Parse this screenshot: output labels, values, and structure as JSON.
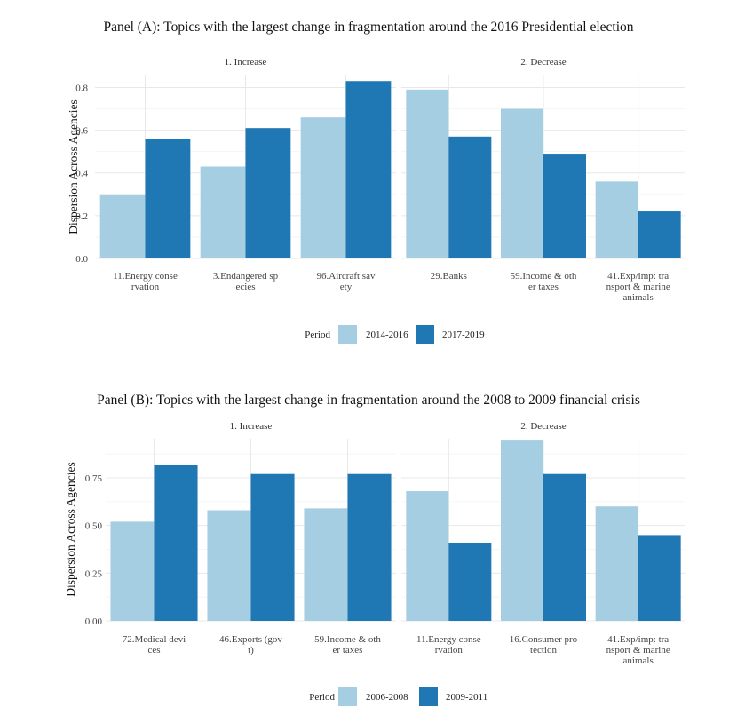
{
  "chart_data": [
    {
      "type": "bar",
      "title": "Panel (A): Topics with the largest change in fragmentation around the 2016 Presidential election",
      "ylabel": "Dispersion Across Agencies",
      "xlabel": "",
      "ylim": [
        0,
        0.86
      ],
      "yticks": [
        "0.0",
        "0.2",
        "0.4",
        "0.6",
        "0.8"
      ],
      "legend": {
        "title": "Period",
        "position": "bottom"
      },
      "series": [
        {
          "name": "2014-2016",
          "color": "#a6cee3"
        },
        {
          "name": "2017-2019",
          "color": "#1f78b4"
        }
      ],
      "facets": [
        {
          "label": "1. Increase",
          "categories": [
            [
              "11.Energy conse",
              "rvation"
            ],
            [
              "3.Endangered sp",
              "ecies"
            ],
            [
              "96.Aircraft sav",
              "ety"
            ]
          ],
          "values": [
            [
              0.3,
              0.56
            ],
            [
              0.43,
              0.61
            ],
            [
              0.66,
              0.83
            ]
          ]
        },
        {
          "label": "2. Decrease",
          "categories": [
            [
              "29.Banks"
            ],
            [
              "59.Income & oth",
              "er taxes"
            ],
            [
              "41.Exp/imp: tra",
              "nsport & marine",
              "animals"
            ]
          ],
          "values": [
            [
              0.79,
              0.57
            ],
            [
              0.7,
              0.49
            ],
            [
              0.36,
              0.22
            ]
          ]
        }
      ]
    },
    {
      "type": "bar",
      "title": "Panel (B): Topics with the largest change in fragmentation around the 2008 to 2009 financial crisis",
      "ylabel": "Dispersion Across Agencies",
      "xlabel": "",
      "ylim": [
        0,
        0.955
      ],
      "yticks": [
        "0.00",
        "0.25",
        "0.50",
        "0.75"
      ],
      "legend": {
        "title": "Period",
        "position": "bottom"
      },
      "series": [
        {
          "name": "2006-2008",
          "color": "#a6cee3"
        },
        {
          "name": "2009-2011",
          "color": "#1f78b4"
        }
      ],
      "facets": [
        {
          "label": "1. Increase",
          "categories": [
            [
              "72.Medical devi",
              "ces"
            ],
            [
              "46.Exports (gov",
              "t)"
            ],
            [
              "59.Income & oth",
              "er taxes"
            ]
          ],
          "values": [
            [
              0.52,
              0.82
            ],
            [
              0.58,
              0.77
            ],
            [
              0.59,
              0.77
            ]
          ]
        },
        {
          "label": "2. Decrease",
          "categories": [
            [
              "11.Energy conse",
              "rvation"
            ],
            [
              "16.Consumer pro",
              "tection"
            ],
            [
              "41.Exp/imp: tra",
              "nsport & marine",
              "animals"
            ]
          ],
          "values": [
            [
              0.68,
              0.41
            ],
            [
              0.95,
              0.77
            ],
            [
              0.6,
              0.45
            ]
          ]
        }
      ]
    }
  ]
}
